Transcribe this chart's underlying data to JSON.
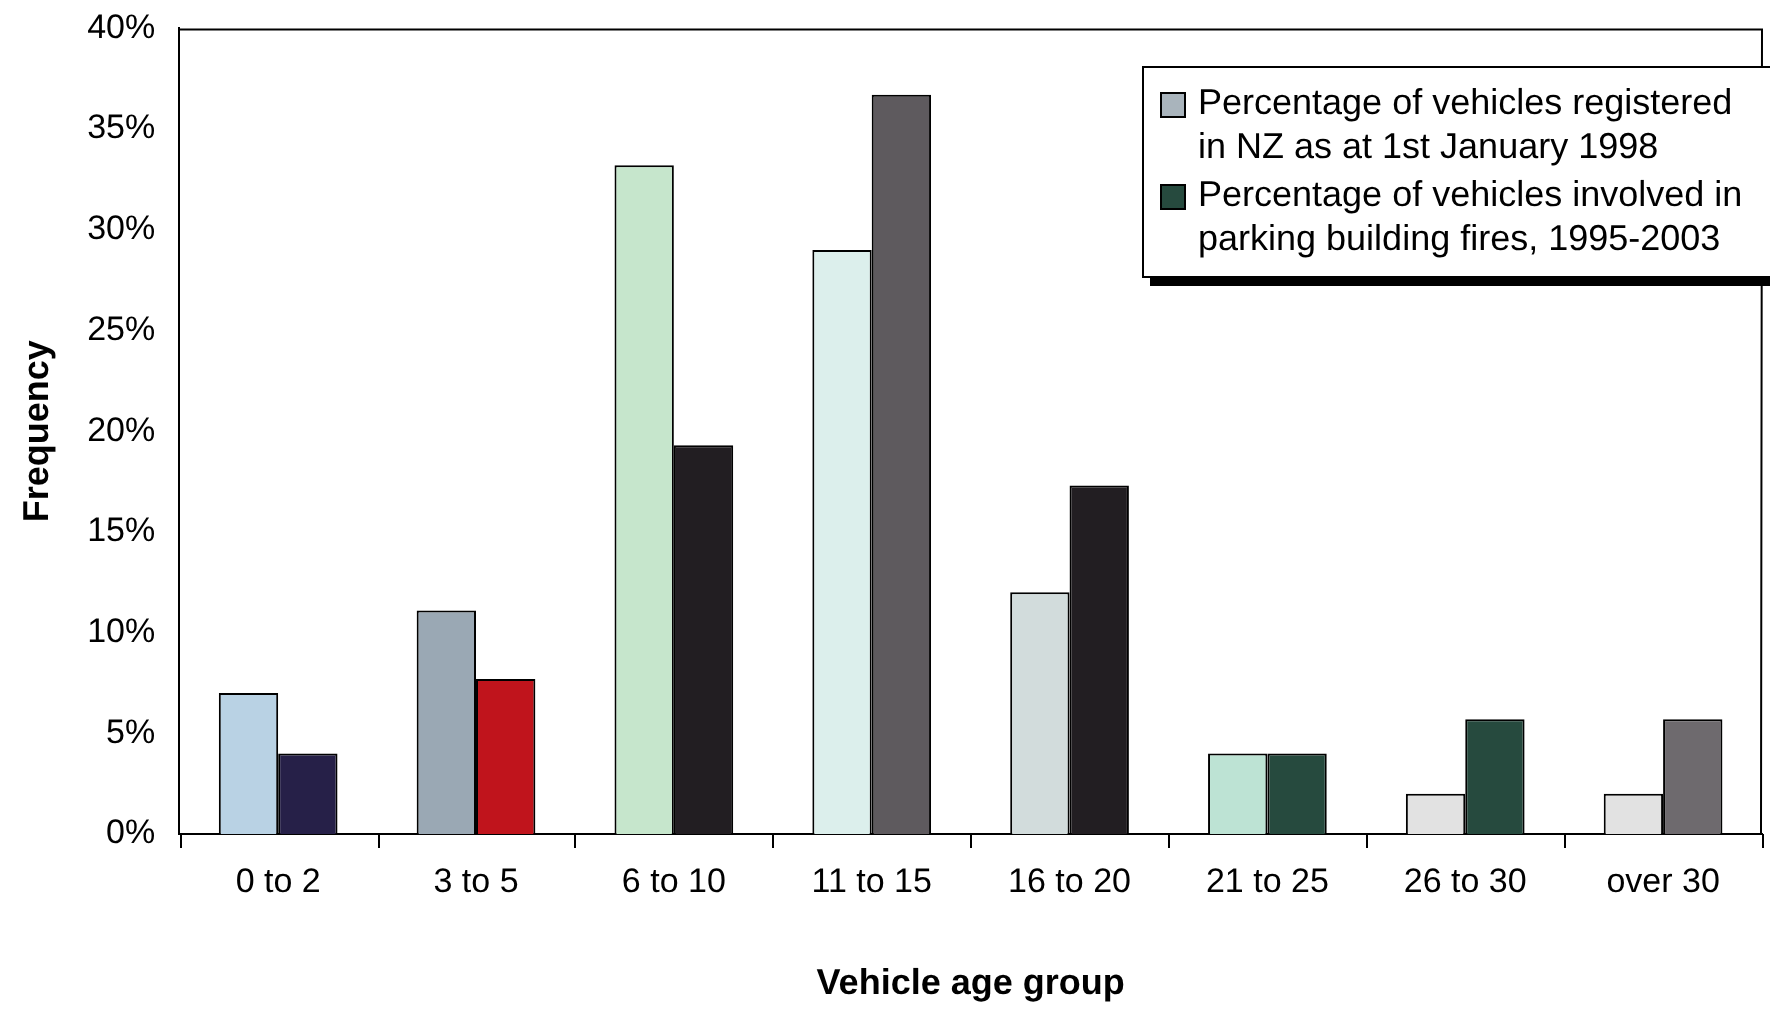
{
  "chart_data": {
    "type": "bar",
    "xlabel": "Vehicle age group",
    "ylabel": "Frequency",
    "categories": [
      "0 to 2",
      "3 to 5",
      "6 to 10",
      "11 to 15",
      "16 to 20",
      "21 to 25",
      "26 to 30",
      "over 30"
    ],
    "series": [
      {
        "name": "Percentage of vehicles registered in NZ as at 1st January 1998",
        "color": "#a9b4bc",
        "colors": [
          "#b9d2e4",
          "#9aa8b4",
          "#c6e6cc",
          "#dcefec",
          "#d2dcdc",
          "#bde3d4",
          "#e2e2e2",
          "#e2e2e2"
        ],
        "values": [
          7,
          11.1,
          33.2,
          29,
          12,
          4,
          2,
          2
        ]
      },
      {
        "name": "Percentage of vehicles involved in parking building fires, 1995-2003",
        "color": "#264a3e",
        "colors": [
          "#262048",
          "#c0141c",
          "#221e22",
          "#5e5a5e",
          "#221e22",
          "#264a3e",
          "#264a3e",
          "#6e6a6e"
        ],
        "values": [
          4,
          7.7,
          19.3,
          36.7,
          17.3,
          4,
          5.7,
          5.7
        ]
      }
    ],
    "ylim": [
      0,
      40
    ],
    "yticks": [
      {
        "value": 0,
        "label": "0%"
      },
      {
        "value": 5,
        "label": "5%"
      },
      {
        "value": 10,
        "label": "10%"
      },
      {
        "value": 15,
        "label": "15%"
      },
      {
        "value": 20,
        "label": "20%"
      },
      {
        "value": 25,
        "label": "25%"
      },
      {
        "value": 30,
        "label": "30%"
      },
      {
        "value": 35,
        "label": "35%"
      },
      {
        "value": 40,
        "label": "40%"
      }
    ],
    "grid": false,
    "legend": "top right"
  }
}
